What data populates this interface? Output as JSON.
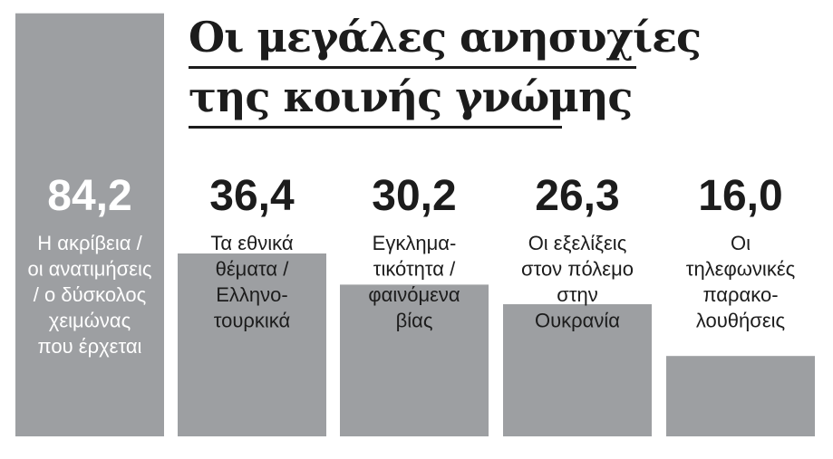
{
  "title_lines": [
    "Οι μεγάλες ανησυχίες",
    "της κοινής γνώμης"
  ],
  "colors": {
    "bar": "#9d9fa2",
    "text_dark": "#1c1c1c",
    "text_on_bar": "#ffffff",
    "background": "#ffffff"
  },
  "chart_data": {
    "type": "bar",
    "title": "Οι μεγάλες ανησυχίες της κοινής γνώμης",
    "xlabel": "",
    "ylabel": "",
    "ylim": [
      0,
      100
    ],
    "grid": false,
    "legend": "none",
    "categories": [
      "Η ακρίβεια / οι ανατιμήσεις / ο δύσκολος χειμώνας που έρχεται",
      "Τα εθνικά θέματα / Ελληνο-τουρκικά",
      "Εγκλημα-τικότητα / φαινόμενα βίας",
      "Οι εξελίξεις στον πόλεμο στην Ουκρανία",
      "Οι τηλεφωνικές παρακο-λουθήσεις"
    ],
    "values": [
      84.2,
      36.4,
      30.2,
      26.3,
      16.0
    ],
    "value_labels": [
      "84,2",
      "36,4",
      "30,2",
      "26,3",
      "16,0"
    ],
    "category_lines": [
      [
        "Η ακρίβεια /",
        "οι ανατιμήσεις",
        "/ ο δύσκολος",
        "χειμώνας",
        "που έρχεται"
      ],
      [
        "Τα εθνικά",
        "θέματα /",
        "Ελληνο-",
        "τουρκικά"
      ],
      [
        "Εγκλημα-",
        "τικότητα /",
        "φαινόμενα",
        "βίας"
      ],
      [
        "Οι εξελίξεις",
        "στον πόλεμο",
        "στην",
        "Ουκρανία"
      ],
      [
        "Οι",
        "τηλεφωνικές",
        "παρακο-",
        "λουθήσεις"
      ]
    ]
  }
}
